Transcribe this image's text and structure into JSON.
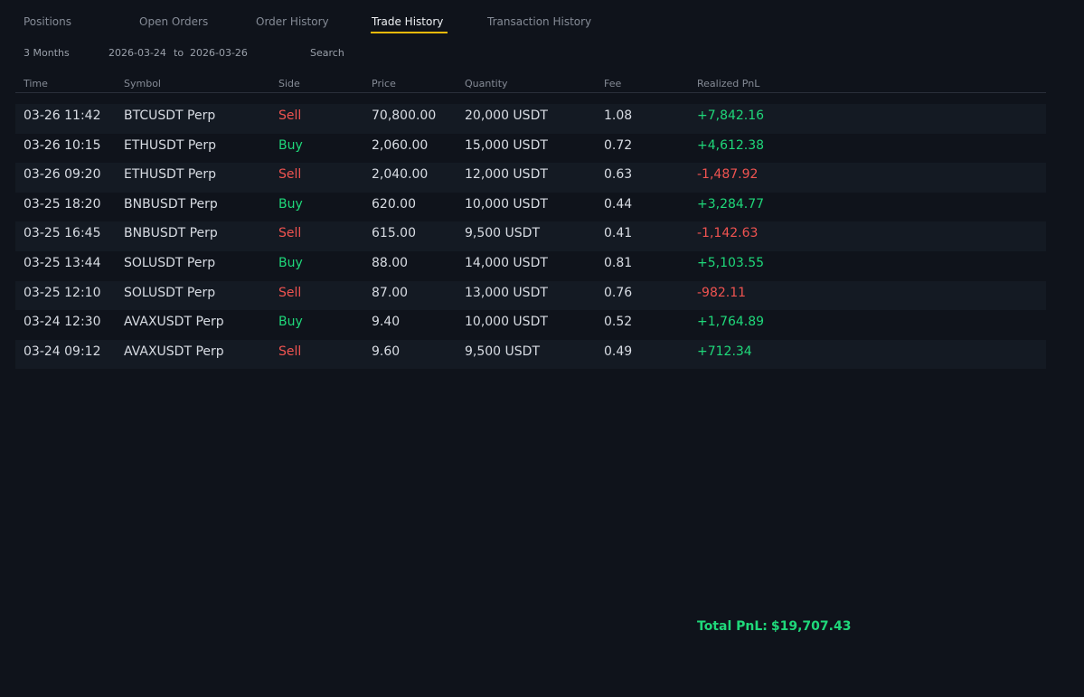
{
  "tabs": [
    {
      "label": "Positions",
      "active": false
    },
    {
      "label": "Open Orders",
      "active": false
    },
    {
      "label": "Order History",
      "active": false
    },
    {
      "label": "Trade History",
      "active": true
    },
    {
      "label": "Transaction History",
      "active": false
    }
  ],
  "filters": {
    "range": "3 Months",
    "start_date": "2026-03-24",
    "to": "to",
    "end_date": "2026-03-26",
    "search": "Search"
  },
  "table": {
    "headers": [
      "Time",
      "Symbol",
      "Side",
      "Price",
      "Quantity",
      "Fee",
      "Realized PnL"
    ],
    "rows": [
      {
        "time": "03-26 11:42",
        "symbol": "BTCUSDT Perp",
        "side": "Sell",
        "price": "70,800.00",
        "quantity": "20,000 USDT",
        "fee": "1.08",
        "pnl": "+7,842.16"
      },
      {
        "time": "03-26 10:15",
        "symbol": "ETHUSDT Perp",
        "side": "Buy",
        "price": "2,060.00",
        "quantity": "15,000 USDT",
        "fee": "0.72",
        "pnl": "+4,612.38"
      },
      {
        "time": "03-26 09:20",
        "symbol": "ETHUSDT Perp",
        "side": "Sell",
        "price": "2,040.00",
        "quantity": "12,000 USDT",
        "fee": "0.63",
        "pnl": "-1,487.92"
      },
      {
        "time": "03-25 18:20",
        "symbol": "BNBUSDT Perp",
        "side": "Buy",
        "price": "620.00",
        "quantity": "10,000 USDT",
        "fee": "0.44",
        "pnl": "+3,284.77"
      },
      {
        "time": "03-25 16:45",
        "symbol": "BNBUSDT Perp",
        "side": "Sell",
        "price": "615.00",
        "quantity": "9,500 USDT",
        "fee": "0.41",
        "pnl": "-1,142.63"
      },
      {
        "time": "03-25 13:44",
        "symbol": "SOLUSDT Perp",
        "side": "Buy",
        "price": "88.00",
        "quantity": "14,000 USDT",
        "fee": "0.81",
        "pnl": "+5,103.55"
      },
      {
        "time": "03-25 12:10",
        "symbol": "SOLUSDT Perp",
        "side": "Sell",
        "price": "87.00",
        "quantity": "13,000 USDT",
        "fee": "0.76",
        "pnl": "-982.11"
      },
      {
        "time": "03-24 12:30",
        "symbol": "AVAXUSDT Perp",
        "side": "Buy",
        "price": "9.40",
        "quantity": "10,000 USDT",
        "fee": "0.52",
        "pnl": "+1,764.89"
      },
      {
        "time": "03-24 09:12",
        "symbol": "AVAXUSDT Perp",
        "side": "Sell",
        "price": "9.60",
        "quantity": "9,500 USDT",
        "fee": "0.49",
        "pnl": "+712.34"
      }
    ]
  },
  "total": {
    "label": "Total PnL:",
    "value": "$19,707.43"
  },
  "colors": {
    "accent": "#f0b90b",
    "positive": "#1fd87a",
    "negative": "#ef5350",
    "background": "#0f131b"
  }
}
